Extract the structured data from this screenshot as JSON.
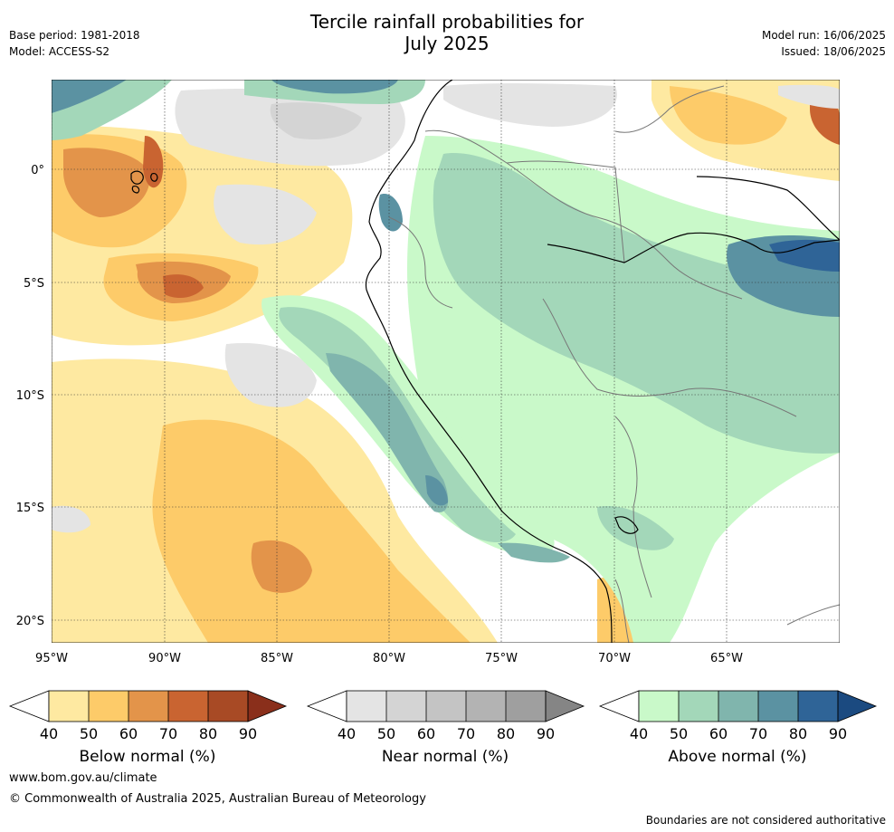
{
  "title_line1": "Tercile rainfall probabilities for",
  "title_line2": "July 2025",
  "meta_left": [
    "Base period: 1981-2018",
    "Model: ACCESS-S2"
  ],
  "meta_right": [
    "Model run: 16/06/2025",
    "Issued: 18/06/2025"
  ],
  "lon_labels": [
    "95°W",
    "90°W",
    "85°W",
    "80°W",
    "75°W",
    "70°W",
    "65°W"
  ],
  "lat_labels": [
    "0°",
    "5°S",
    "10°S",
    "15°S",
    "20°S"
  ],
  "legends": [
    {
      "title": "Below normal (%)",
      "ticks": [
        "40",
        "50",
        "60",
        "70",
        "80",
        "90"
      ],
      "colors": [
        "#fee9a1",
        "#fdcb69",
        "#e3944a",
        "#c96431",
        "#a84a25",
        "#8a2f1b"
      ]
    },
    {
      "title": "Near normal (%)",
      "ticks": [
        "40",
        "50",
        "60",
        "70",
        "80",
        "90"
      ],
      "colors": [
        "#e4e4e4",
        "#d4d4d4",
        "#c4c4c4",
        "#b3b3b3",
        "#9f9f9f",
        "#858585"
      ]
    },
    {
      "title": "Above normal (%)",
      "ticks": [
        "40",
        "50",
        "60",
        "70",
        "80",
        "90"
      ],
      "colors": [
        "#c9f9c9",
        "#a3d7b9",
        "#80b5ad",
        "#5b92a2",
        "#2f6497",
        "#1b4a80"
      ]
    }
  ],
  "footer_url": "www.bom.gov.au/climate",
  "footer_copyright": "© Commonwealth of Australia 2025, Australian Bureau of Meteorology",
  "footer_disclaimer": "Boundaries are not considered authoritative"
}
